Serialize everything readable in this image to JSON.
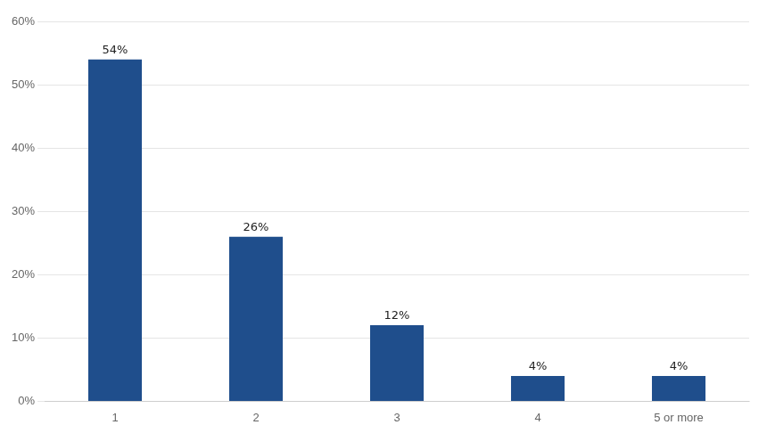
{
  "chart_data": {
    "type": "bar",
    "categories": [
      "1",
      "2",
      "3",
      "4",
      "5 or more"
    ],
    "values": [
      54,
      26,
      12,
      4,
      4
    ],
    "value_labels": [
      "54%",
      "26%",
      "12%",
      "4%",
      "4%"
    ],
    "data_labels": true,
    "color": "#1F4E8C",
    "ylim": [
      0,
      60
    ],
    "yticks": [
      {
        "value": 0,
        "label": "0%"
      },
      {
        "value": 10,
        "label": "10%"
      },
      {
        "value": 20,
        "label": "20%"
      },
      {
        "value": 30,
        "label": "30%"
      },
      {
        "value": 40,
        "label": "40%"
      },
      {
        "value": 50,
        "label": "50%"
      },
      {
        "value": 60,
        "label": "60%"
      }
    ],
    "grid": true
  }
}
